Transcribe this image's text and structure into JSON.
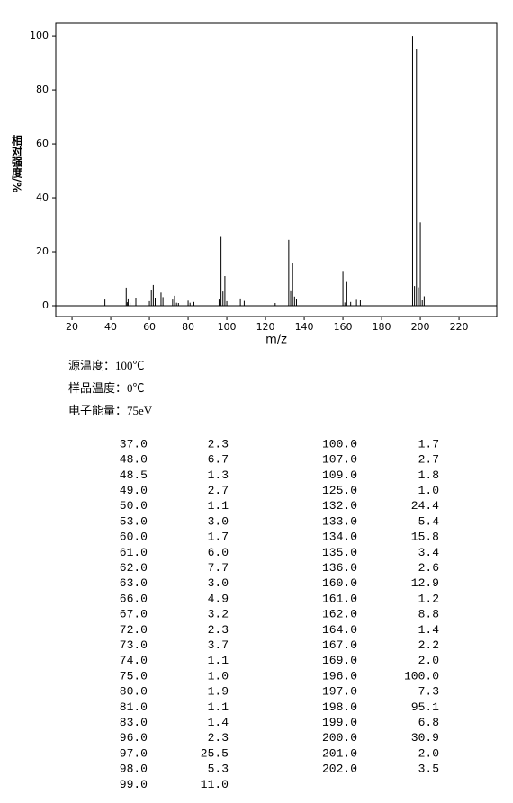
{
  "chart_data": {
    "type": "stem",
    "x_label": "m/z",
    "y_label": "相对强度/%",
    "xlim": [
      11.6,
      239.5
    ],
    "ylim": [
      -4,
      104.7
    ],
    "xticks": [
      20,
      40,
      60,
      80,
      100,
      120,
      140,
      160,
      180,
      200,
      220
    ],
    "yticks": [
      0,
      20,
      40,
      60,
      80,
      100
    ],
    "color": "#000000",
    "notes": [
      "源温度：100℃",
      "样品温度：0℃",
      "电子能量：75eV"
    ],
    "x": [
      37,
      48,
      48.5,
      49,
      50,
      53,
      60,
      61,
      62,
      63,
      66,
      67,
      72,
      73,
      74,
      75,
      80,
      81,
      83,
      96,
      97,
      98,
      99,
      100,
      107,
      109,
      125,
      132,
      133,
      134,
      135,
      136,
      160,
      161,
      162,
      164,
      167,
      169,
      196,
      197,
      198,
      199,
      200,
      201,
      202
    ],
    "x_labels": [
      "37.0",
      "48.0",
      "48.5",
      "49.0",
      "50.0",
      "53.0",
      "60.0",
      "61.0",
      "62.0",
      "63.0",
      "66.0",
      "67.0",
      "72.0",
      "73.0",
      "74.0",
      "75.0",
      "80.0",
      "81.0",
      "83.0",
      "96.0",
      "97.0",
      "98.0",
      "99.0",
      "100.0",
      "107.0",
      "109.0",
      "125.0",
      "132.0",
      "133.0",
      "134.0",
      "135.0",
      "136.0",
      "160.0",
      "161.0",
      "162.0",
      "164.0",
      "167.0",
      "169.0",
      "196.0",
      "197.0",
      "198.0",
      "199.0",
      "200.0",
      "201.0",
      "202.0"
    ],
    "values": [
      2.3,
      6.7,
      1.3,
      2.7,
      1.1,
      3.0,
      1.7,
      6.0,
      7.7,
      3.0,
      4.9,
      3.2,
      2.3,
      3.7,
      1.1,
      1.0,
      1.9,
      1.1,
      1.4,
      2.3,
      25.5,
      5.3,
      11.0,
      1.7,
      2.7,
      1.8,
      1.0,
      24.4,
      5.4,
      15.8,
      3.4,
      2.6,
      12.9,
      1.2,
      8.8,
      1.4,
      2.2,
      2.0,
      100.0,
      7.3,
      95.1,
      6.8,
      30.9,
      2.0,
      3.5
    ],
    "value_labels": [
      "2.3",
      "6.7",
      "1.3",
      "2.7",
      "1.1",
      "3.0",
      "1.7",
      "6.0",
      "7.7",
      "3.0",
      "4.9",
      "3.2",
      "2.3",
      "3.7",
      "1.1",
      "1.0",
      "1.9",
      "1.1",
      "1.4",
      "2.3",
      "25.5",
      "5.3",
      "11.0",
      "1.7",
      "2.7",
      "1.8",
      "1.0",
      "24.4",
      "5.4",
      "15.8",
      "3.4",
      "2.6",
      "12.9",
      "1.2",
      "8.8",
      "1.4",
      "2.2",
      "2.0",
      "100.0",
      "7.3",
      "95.1",
      "6.8",
      "30.9",
      "2.0",
      "3.5"
    ]
  }
}
